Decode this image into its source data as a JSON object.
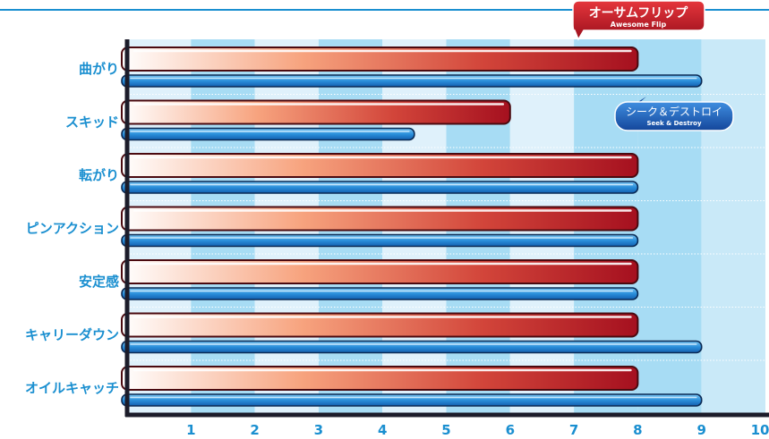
{
  "chart_data": {
    "type": "bar",
    "orientation": "horizontal",
    "categories": [
      "曲がり",
      "スキッド",
      "転がり",
      "ピンアクション",
      "安定感",
      "キャリーダウン",
      "オイルキャッチ"
    ],
    "series": [
      {
        "name": "オーサムフリップ",
        "subname": "Awesome Flip",
        "color": "#b3121f",
        "values": [
          8,
          6,
          8,
          8,
          8,
          8,
          8
        ]
      },
      {
        "name": "シーク＆デストロイ",
        "subname": "Seek & Destroy",
        "color": "#1a7fd0",
        "values": [
          9,
          4.5,
          8,
          8,
          8,
          9,
          9
        ]
      }
    ],
    "x_ticks": [
      "1",
      "2",
      "3",
      "4",
      "5",
      "6",
      "7",
      "8",
      "9",
      "10"
    ],
    "xlim": [
      0,
      10
    ],
    "grid": "alternating vertical bands",
    "legend": "inline callouts"
  },
  "colors": {
    "accent": "#1a8fd0",
    "band_light": "#dff1fb",
    "band_dark": "#a7dcf4",
    "axis": "#1c1c2a"
  }
}
